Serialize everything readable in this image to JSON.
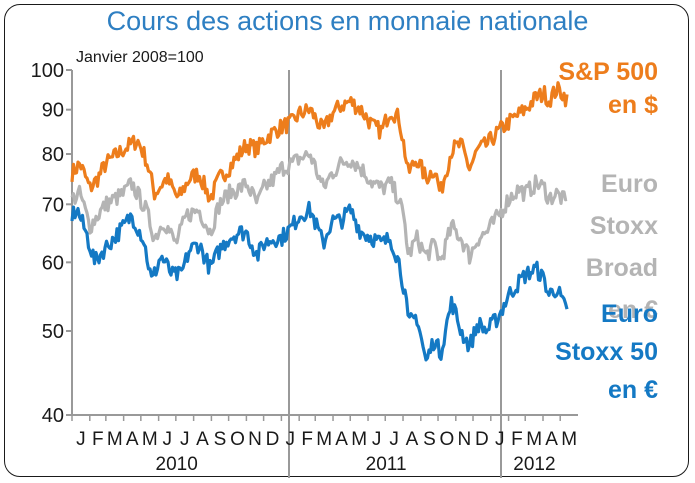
{
  "chart_data": {
    "type": "line",
    "title": "Cours des actions en monnaie nationale",
    "subtitle": "Janvier 2008=100",
    "y_scale": "log",
    "ylim": [
      40,
      100
    ],
    "y_ticks": [
      40,
      50,
      60,
      70,
      80,
      90,
      100
    ],
    "x_range": [
      "2010-01",
      "2012-05"
    ],
    "x_month_labels": [
      "J",
      "F",
      "M",
      "A",
      "M",
      "J",
      "J",
      "A",
      "S",
      "O",
      "N",
      "D",
      "J",
      "F",
      "M",
      "A",
      "M",
      "J",
      "J",
      "A",
      "S",
      "O",
      "N",
      "D",
      "J",
      "F",
      "M",
      "A",
      "M"
    ],
    "x_year_labels": [
      "2010",
      "2011",
      "2012"
    ],
    "grid": false,
    "series": [
      {
        "name": "S&P 500 en $",
        "label_lines": [
          "S&P 500",
          "en $"
        ],
        "color": "#ed7d1c",
        "points": [
          [
            "2010-01",
            76
          ],
          [
            "2010-01-15",
            78
          ],
          [
            "2010-02",
            73
          ],
          [
            "2010-02-15",
            75
          ],
          [
            "2010-03",
            78
          ],
          [
            "2010-04",
            81
          ],
          [
            "2010-04-25",
            83
          ],
          [
            "2010-05-10",
            79
          ],
          [
            "2010-05-25",
            72
          ],
          [
            "2010-06-15",
            75
          ],
          [
            "2010-07-05",
            71
          ],
          [
            "2010-07-25",
            75
          ],
          [
            "2010-08-10",
            76
          ],
          [
            "2010-08-30",
            71
          ],
          [
            "2010-09-15",
            75
          ],
          [
            "2010-10",
            77
          ],
          [
            "2010-10-20",
            80
          ],
          [
            "2010-11",
            82
          ],
          [
            "2010-11-20",
            81
          ],
          [
            "2010-12",
            83
          ],
          [
            "2010-12-20",
            85
          ],
          [
            "2011-01",
            86
          ],
          [
            "2011-01-20",
            87
          ],
          [
            "2011-02",
            89
          ],
          [
            "2011-02-20",
            90
          ],
          [
            "2011-03-15",
            85
          ],
          [
            "2011-03-30",
            89
          ],
          [
            "2011-04-15",
            91
          ],
          [
            "2011-05",
            92
          ],
          [
            "2011-05-20",
            90
          ],
          [
            "2011-06-10",
            86
          ],
          [
            "2011-06-25",
            85
          ],
          [
            "2011-07-10",
            90
          ],
          [
            "2011-07-25",
            88
          ],
          [
            "2011-08-05",
            80
          ],
          [
            "2011-08-10",
            76
          ],
          [
            "2011-08-25",
            79
          ],
          [
            "2011-09-10",
            75
          ],
          [
            "2011-09-25",
            77
          ],
          [
            "2011-10-05",
            72
          ],
          [
            "2011-10-25",
            81
          ],
          [
            "2011-11-10",
            82
          ],
          [
            "2011-11-25",
            77
          ],
          [
            "2011-12-10",
            81
          ],
          [
            "2011-12-25",
            82
          ],
          [
            "2012-01-15",
            85
          ],
          [
            "2012-02",
            87
          ],
          [
            "2012-02-20",
            89
          ],
          [
            "2012-03",
            90
          ],
          [
            "2012-03-20",
            93
          ],
          [
            "2012-04-05",
            94
          ],
          [
            "2012-04-10",
            92
          ],
          [
            "2012-04-25",
            95
          ],
          [
            "2012-05-05",
            94
          ],
          [
            "2012-05-15",
            92
          ]
        ]
      },
      {
        "name": "Euro Stoxx Broad en €",
        "label_lines": [
          "Euro",
          "Stoxx",
          "Broad",
          "en €"
        ],
        "color": "#b4b4b4",
        "points": [
          [
            "2010-01",
            71
          ],
          [
            "2010-01-15",
            72
          ],
          [
            "2010-02",
            66
          ],
          [
            "2010-02-15",
            68
          ],
          [
            "2010-03",
            70
          ],
          [
            "2010-04",
            72
          ],
          [
            "2010-04-15",
            74
          ],
          [
            "2010-05-10",
            69
          ],
          [
            "2010-05-25",
            64
          ],
          [
            "2010-06-10",
            67
          ],
          [
            "2010-07",
            63
          ],
          [
            "2010-07-20",
            68
          ],
          [
            "2010-08-10",
            69
          ],
          [
            "2010-08-30",
            65
          ],
          [
            "2010-09-15",
            70
          ],
          [
            "2010-10",
            72
          ],
          [
            "2010-10-20",
            73
          ],
          [
            "2010-11",
            74
          ],
          [
            "2010-11-20",
            70
          ],
          [
            "2010-12",
            73
          ],
          [
            "2010-12-20",
            75
          ],
          [
            "2011-01",
            77
          ],
          [
            "2011-01-20",
            78
          ],
          [
            "2011-02",
            79
          ],
          [
            "2011-02-20",
            80
          ],
          [
            "2011-03-15",
            73
          ],
          [
            "2011-03-30",
            76
          ],
          [
            "2011-04-15",
            78
          ],
          [
            "2011-05",
            79
          ],
          [
            "2011-05-20",
            77
          ],
          [
            "2011-06-10",
            74
          ],
          [
            "2011-06-25",
            73
          ],
          [
            "2011-07-10",
            74
          ],
          [
            "2011-07-25",
            71
          ],
          [
            "2011-08-05",
            66
          ],
          [
            "2011-08-10",
            61
          ],
          [
            "2011-08-25",
            64
          ],
          [
            "2011-09-10",
            61
          ],
          [
            "2011-09-25",
            63
          ],
          [
            "2011-10-05",
            60
          ],
          [
            "2011-10-25",
            66
          ],
          [
            "2011-11-10",
            64
          ],
          [
            "2011-11-25",
            61
          ],
          [
            "2011-12-10",
            64
          ],
          [
            "2011-12-25",
            65
          ],
          [
            "2012-01-15",
            68
          ],
          [
            "2012-02",
            71
          ],
          [
            "2012-02-20",
            73
          ],
          [
            "2012-03",
            72
          ],
          [
            "2012-03-20",
            74
          ],
          [
            "2012-04-05",
            73
          ],
          [
            "2012-04-10",
            71
          ],
          [
            "2012-04-25",
            72
          ],
          [
            "2012-05-05",
            71
          ],
          [
            "2012-05-15",
            70
          ]
        ]
      },
      {
        "name": "Euro Stoxx 50 en €",
        "label_lines": [
          "Euro",
          "Stoxx 50",
          "en €"
        ],
        "color": "#1479c4",
        "points": [
          [
            "2010-01",
            68
          ],
          [
            "2010-01-10",
            69
          ],
          [
            "2010-01-25",
            65
          ],
          [
            "2010-02-10",
            60
          ],
          [
            "2010-02-25",
            62
          ],
          [
            "2010-03-15",
            64
          ],
          [
            "2010-04",
            66
          ],
          [
            "2010-04-15",
            68
          ],
          [
            "2010-05-05",
            64
          ],
          [
            "2010-05-20",
            57
          ],
          [
            "2010-06-05",
            61
          ],
          [
            "2010-06-25",
            58
          ],
          [
            "2010-07-10",
            58
          ],
          [
            "2010-07-25",
            62
          ],
          [
            "2010-08-10",
            63
          ],
          [
            "2010-08-30",
            59
          ],
          [
            "2010-09-15",
            62
          ],
          [
            "2010-10",
            64
          ],
          [
            "2010-10-20",
            65
          ],
          [
            "2010-11",
            65
          ],
          [
            "2010-11-20",
            61
          ],
          [
            "2010-12",
            63
          ],
          [
            "2010-12-20",
            64
          ],
          [
            "2011-01",
            64
          ],
          [
            "2011-01-20",
            66
          ],
          [
            "2011-02",
            68
          ],
          [
            "2011-02-20",
            69
          ],
          [
            "2011-03-15",
            63
          ],
          [
            "2011-03-30",
            67
          ],
          [
            "2011-04-15",
            67
          ],
          [
            "2011-05",
            69
          ],
          [
            "2011-05-20",
            65
          ],
          [
            "2011-06-10",
            64
          ],
          [
            "2011-06-25",
            63
          ],
          [
            "2011-07-10",
            64
          ],
          [
            "2011-07-25",
            60
          ],
          [
            "2011-08-05",
            55
          ],
          [
            "2011-08-10",
            51
          ],
          [
            "2011-08-25",
            52
          ],
          [
            "2011-09-10",
            46
          ],
          [
            "2011-09-25",
            49
          ],
          [
            "2011-10-05",
            47
          ],
          [
            "2011-10-25",
            54
          ],
          [
            "2011-11-10",
            50
          ],
          [
            "2011-11-25",
            48
          ],
          [
            "2011-12-10",
            51
          ],
          [
            "2011-12-25",
            50
          ],
          [
            "2012-01-15",
            52
          ],
          [
            "2012-02",
            55
          ],
          [
            "2012-02-20",
            57
          ],
          [
            "2012-03",
            58
          ],
          [
            "2012-03-20",
            59
          ],
          [
            "2012-04-05",
            57
          ],
          [
            "2012-04-10",
            55
          ],
          [
            "2012-04-25",
            56
          ],
          [
            "2012-05-05",
            54
          ],
          [
            "2012-05-15",
            52
          ]
        ]
      }
    ]
  }
}
